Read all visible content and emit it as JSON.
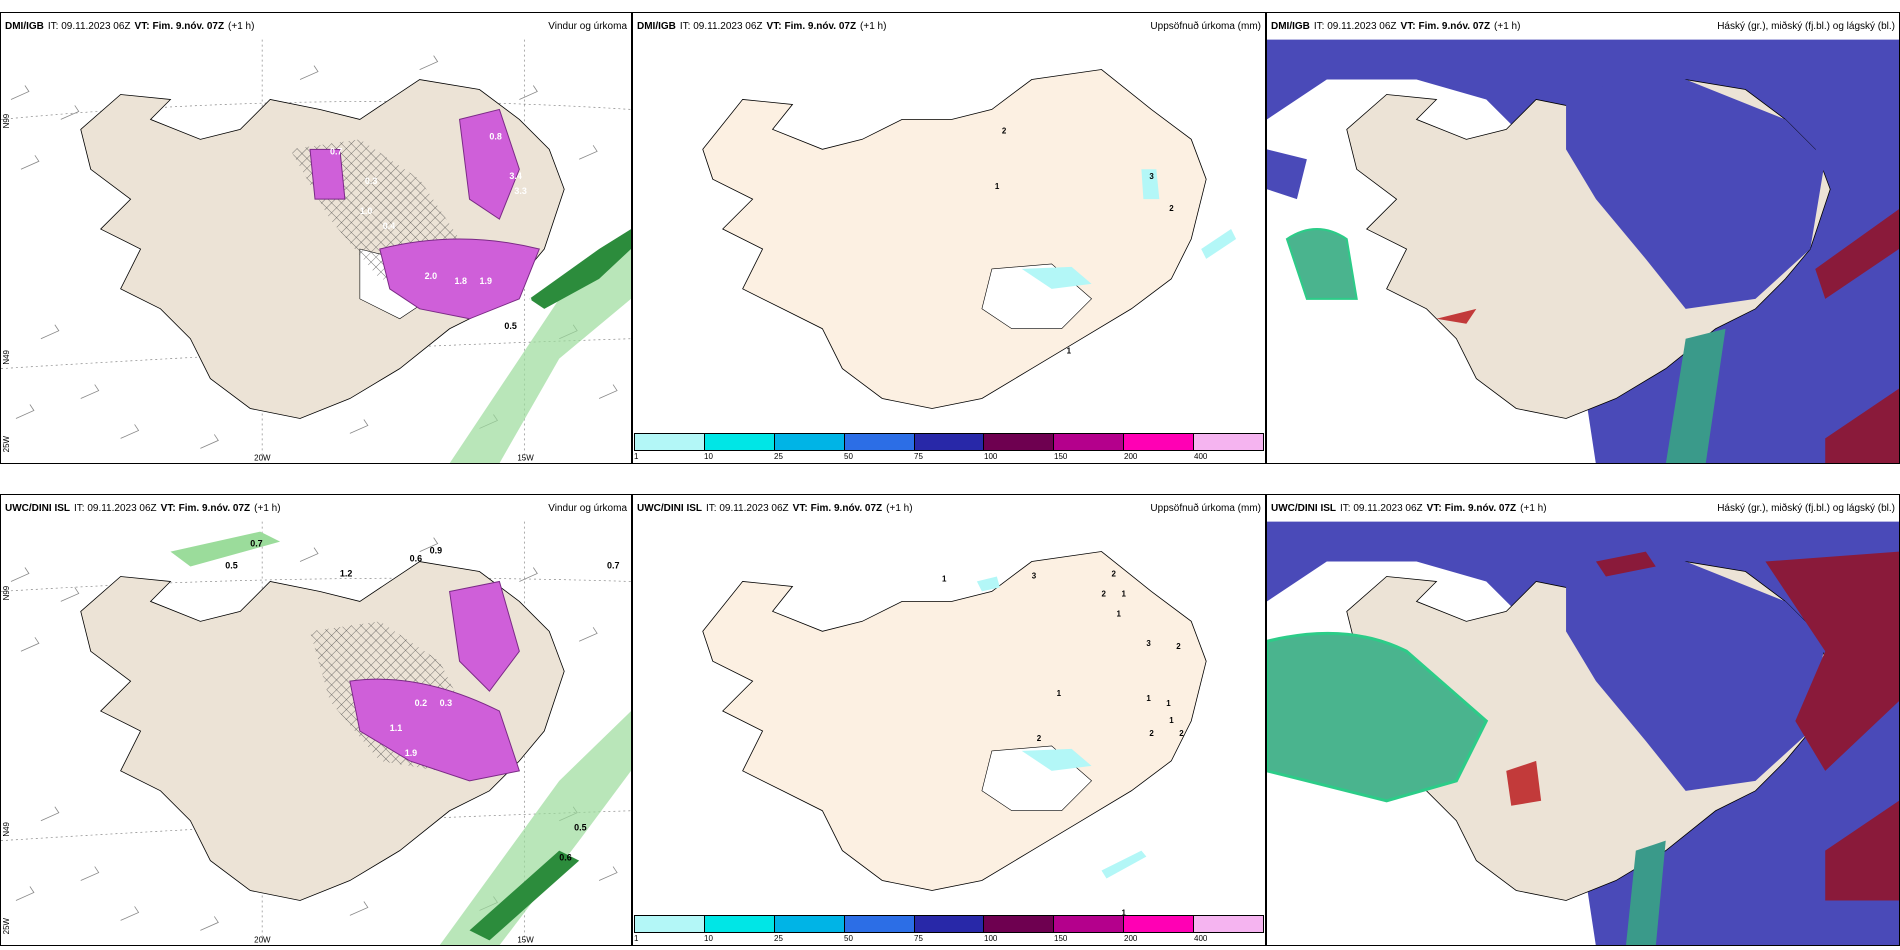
{
  "panels": [
    {
      "model": "DMI/IGB",
      "it": "IT: 09.11.2023 06Z",
      "vt_label": "VT:",
      "vt": "Fim. 9.nóv. 07Z",
      "offset": "(+1 h)",
      "title": "Vindur og úrkoma"
    },
    {
      "model": "DMI/IGB",
      "it": "IT: 09.11.2023 06Z",
      "vt_label": "VT:",
      "vt": "Fim. 9.nóv. 07Z",
      "offset": "(+1 h)",
      "title": "Uppsöfnuð úrkoma (mm)"
    },
    {
      "model": "DMI/IGB",
      "it": "IT: 09.11.2023 06Z",
      "vt_label": "VT:",
      "vt": "Fim. 9.nóv. 07Z",
      "offset": "(+1 h)",
      "title": "Háský (gr.), miðský (fj.bl.) og lágský (bl.)"
    },
    {
      "model": "UWC/DINI ISL",
      "it": "IT: 09.11.2023 06Z",
      "vt_label": "VT:",
      "vt": "Fim. 9.nóv. 07Z",
      "offset": "(+1 h)",
      "title": "Vindur og úrkoma"
    },
    {
      "model": "UWC/DINI ISL",
      "it": "IT: 09.11.2023 06Z",
      "vt_label": "VT:",
      "vt": "Fim. 9.nóv. 07Z",
      "offset": "(+1 h)",
      "title": "Uppsöfnuð úrkoma (mm)"
    },
    {
      "model": "UWC/DINI ISL",
      "it": "IT: 09.11.2023 06Z",
      "vt_label": "VT:",
      "vt": "Fim. 9.nóv. 07Z",
      "offset": "(+1 h)",
      "title": "Háský (gr.), miðský (fj.bl.) og lágský (bl.)"
    }
  ],
  "axes": {
    "lat_top": "N99",
    "lat_mid": "N99",
    "lat_low": "N49",
    "lat_bottom": "25W",
    "lon_20": "20W",
    "lon_15": "15W"
  },
  "colorbar": {
    "labels": [
      "1",
      "10",
      "25",
      "50",
      "75",
      "100",
      "150",
      "200",
      "400"
    ],
    "colors": [
      "#b3f7f7",
      "#00e6e6",
      "#00b4e6",
      "#2c6ee6",
      "#2828a8",
      "#6e0050",
      "#b4008c",
      "#ff00b4",
      "#f5b4f0"
    ]
  },
  "annotations": {
    "top_wind": [
      "0.7",
      "0.3",
      "1.0",
      "0.4",
      "0.8",
      "2.0",
      "3.4",
      "3.3",
      "2.9",
      "1.8",
      "1.9",
      "0.5"
    ],
    "bottom_wind": [
      "0.7",
      "0.5",
      "0.7",
      "0.5",
      "0.6",
      "1.2",
      "0.6",
      "0.9",
      "0.2",
      "1.1",
      "0.3",
      "1.9"
    ],
    "top_acc": [
      "2",
      "1",
      "3",
      "2",
      "1"
    ],
    "bottom_acc": [
      "1",
      "3",
      "2",
      "2",
      "1",
      "1",
      "3",
      "2",
      "1",
      "1",
      "1",
      "1",
      "2",
      "2",
      "2",
      "1"
    ]
  },
  "colors": {
    "land": "#ece3d6",
    "land_acc": "#fcf0e2",
    "precip": "#cf5fd9",
    "wind_band": "#9bdc9b",
    "cloud_high": "#4a4ab8",
    "cloud_mid": "#4ab48e",
    "cloud_low": "#8a1a3a"
  }
}
